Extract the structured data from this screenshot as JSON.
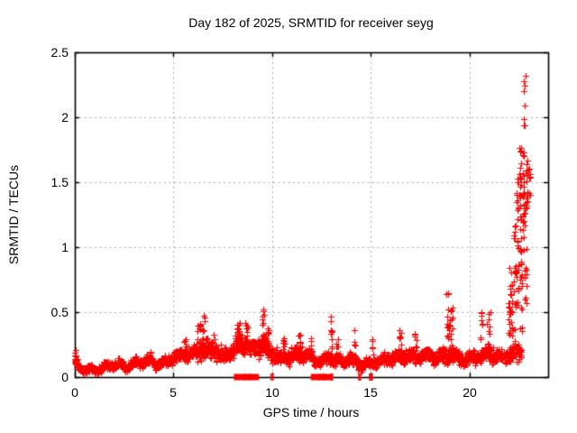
{
  "figure_background": "#ffffff",
  "chart_data": {
    "type": "scatter",
    "title": "Day 182 of 2025, SRMTID for receiver seyg",
    "xlabel": "GPS time / hours",
    "ylabel": "SRMTID / TECUs",
    "xlim": [
      0,
      24
    ],
    "ylim": [
      0,
      2.5
    ],
    "xticks": {
      "values": [
        0,
        5,
        10,
        15,
        20
      ],
      "labels": [
        "0",
        "5",
        "10",
        "15",
        "20"
      ]
    },
    "yticks": {
      "values": [
        0,
        0.5,
        1,
        1.5,
        2,
        2.5
      ],
      "labels": [
        "0",
        "0.5",
        "1",
        "1.5",
        "2",
        "2.5"
      ]
    },
    "grid": {
      "on": true,
      "color": "#a8a8a8",
      "dash": [
        2,
        3.5
      ]
    },
    "border_color": "#000000",
    "marker": {
      "shape": "plus",
      "color": "#ff0000",
      "size": 7
    },
    "series_name": "SRMTID",
    "sampling": {
      "step_hours": 0.0166,
      "points_per_step": 2,
      "start_hour": 0.0,
      "end_hour": 22.65,
      "seed": 182
    },
    "band_anchors": [
      [
        0.0,
        0.1,
        0.06
      ],
      [
        0.3,
        0.07,
        0.03
      ],
      [
        1.0,
        0.055,
        0.03
      ],
      [
        1.5,
        0.08,
        0.035
      ],
      [
        2.0,
        0.1,
        0.04
      ],
      [
        2.6,
        0.085,
        0.035
      ],
      [
        3.2,
        0.11,
        0.045
      ],
      [
        3.8,
        0.13,
        0.05
      ],
      [
        4.3,
        0.1,
        0.04
      ],
      [
        5.0,
        0.15,
        0.05
      ],
      [
        5.5,
        0.17,
        0.06
      ],
      [
        6.0,
        0.19,
        0.07
      ],
      [
        6.5,
        0.22,
        0.09
      ],
      [
        7.0,
        0.2,
        0.08
      ],
      [
        7.5,
        0.16,
        0.06
      ],
      [
        8.0,
        0.2,
        0.08
      ],
      [
        8.5,
        0.26,
        0.09
      ],
      [
        9.0,
        0.22,
        0.08
      ],
      [
        9.5,
        0.26,
        0.09
      ],
      [
        10.0,
        0.17,
        0.07
      ],
      [
        10.5,
        0.15,
        0.06
      ],
      [
        11.0,
        0.17,
        0.07
      ],
      [
        11.5,
        0.19,
        0.07
      ],
      [
        12.0,
        0.15,
        0.06
      ],
      [
        12.5,
        0.12,
        0.05
      ],
      [
        13.0,
        0.16,
        0.07
      ],
      [
        13.5,
        0.12,
        0.05
      ],
      [
        14.0,
        0.14,
        0.06
      ],
      [
        14.6,
        0.09,
        0.05
      ],
      [
        15.2,
        0.12,
        0.05
      ],
      [
        15.8,
        0.14,
        0.05
      ],
      [
        16.4,
        0.16,
        0.06
      ],
      [
        17.0,
        0.15,
        0.06
      ],
      [
        17.6,
        0.17,
        0.06
      ],
      [
        18.2,
        0.15,
        0.06
      ],
      [
        18.8,
        0.18,
        0.07
      ],
      [
        19.2,
        0.17,
        0.07
      ],
      [
        19.8,
        0.14,
        0.06
      ],
      [
        20.4,
        0.16,
        0.06
      ],
      [
        21.0,
        0.18,
        0.07
      ],
      [
        21.5,
        0.15,
        0.06
      ],
      [
        22.0,
        0.17,
        0.07
      ],
      [
        22.65,
        0.22,
        0.1
      ]
    ],
    "spikes": [
      [
        0.03,
        0.22,
        0.06,
        8
      ],
      [
        5.6,
        0.3,
        0.15,
        8
      ],
      [
        6.3,
        0.42,
        0.2,
        14
      ],
      [
        6.55,
        0.47,
        0.1,
        8
      ],
      [
        7.0,
        0.33,
        0.15,
        8
      ],
      [
        8.3,
        0.42,
        0.2,
        10
      ],
      [
        8.7,
        0.45,
        0.15,
        8
      ],
      [
        9.55,
        0.52,
        0.08,
        10
      ],
      [
        9.8,
        0.38,
        0.1,
        6
      ],
      [
        10.6,
        0.33,
        0.15,
        7
      ],
      [
        11.4,
        0.33,
        0.2,
        8
      ],
      [
        12.0,
        0.3,
        0.1,
        5
      ],
      [
        13.0,
        0.52,
        0.07,
        10
      ],
      [
        13.3,
        0.35,
        0.1,
        6
      ],
      [
        14.15,
        0.36,
        0.1,
        7
      ],
      [
        15.1,
        0.3,
        0.1,
        5
      ],
      [
        16.5,
        0.38,
        0.12,
        7
      ],
      [
        17.3,
        0.37,
        0.12,
        7
      ],
      [
        18.9,
        0.65,
        0.12,
        10
      ],
      [
        19.1,
        0.55,
        0.15,
        10
      ],
      [
        19.0,
        0.45,
        0.2,
        8
      ],
      [
        20.6,
        0.55,
        0.12,
        8
      ],
      [
        21.0,
        0.52,
        0.2,
        10
      ],
      [
        22.0,
        0.6,
        0.15,
        8
      ]
    ],
    "burst_clusters": [
      [
        22.1,
        0.2,
        0.25,
        0.85,
        25
      ],
      [
        22.3,
        0.15,
        0.35,
        1.2,
        18
      ],
      [
        22.45,
        0.12,
        0.5,
        1.55,
        25
      ],
      [
        22.6,
        0.12,
        0.75,
        1.8,
        30
      ],
      [
        22.65,
        0.1,
        0.35,
        0.8,
        8
      ],
      [
        22.75,
        0.1,
        0.9,
        1.75,
        25
      ],
      [
        22.8,
        0.08,
        1.9,
        2.33,
        8
      ],
      [
        22.85,
        0.1,
        0.5,
        1.0,
        10
      ],
      [
        22.9,
        0.12,
        1.2,
        1.7,
        15
      ],
      [
        23.05,
        0.1,
        1.4,
        1.65,
        8
      ]
    ],
    "zero_squares": [
      [
        8.2,
        8.55
      ],
      [
        8.68,
        8.8
      ],
      [
        8.95,
        9.2
      ],
      [
        12.1,
        12.35
      ],
      [
        12.45,
        12.6
      ],
      [
        12.7,
        12.9
      ]
    ],
    "zero_ticks": [
      9.95,
      10.05,
      12.98,
      13.06,
      14.4,
      14.48,
      14.95,
      15.0,
      15.08
    ]
  }
}
